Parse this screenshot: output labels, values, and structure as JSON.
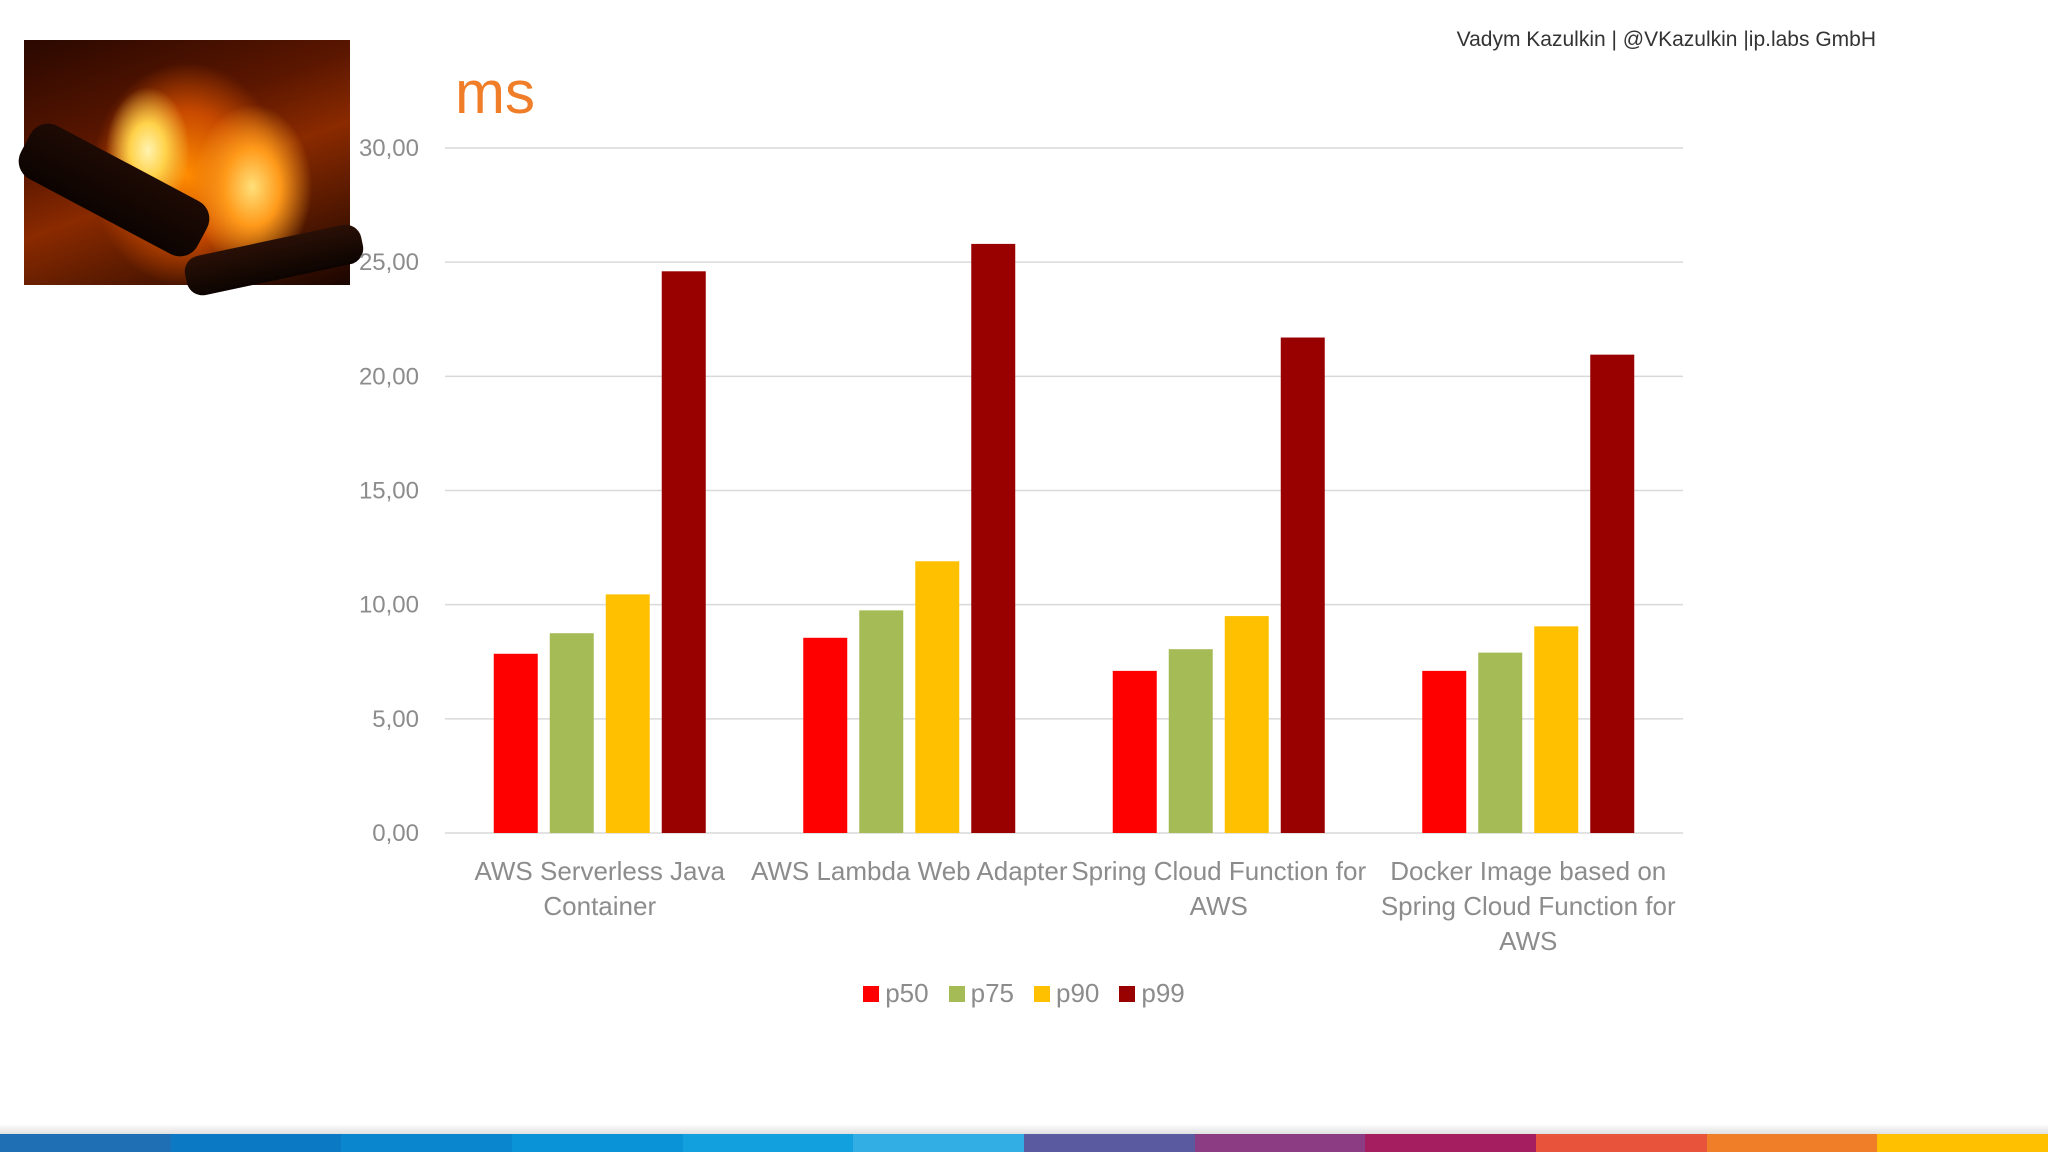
{
  "header": {
    "author": "Vadym Kazulkin | @VKazulkin |ip.labs GmbH"
  },
  "chart_data": {
    "type": "bar",
    "title": "",
    "xlabel": "",
    "ylabel": "ms",
    "ylim": [
      0,
      30
    ],
    "yticks": [
      "0,00",
      "5,00",
      "10,00",
      "15,00",
      "20,00",
      "25,00",
      "30,00"
    ],
    "grid": true,
    "legend_position": "bottom",
    "categories": [
      [
        "AWS Serverless Java",
        "Container"
      ],
      [
        "AWS Lambda Web Adapter"
      ],
      [
        "Spring Cloud Function for",
        "AWS"
      ],
      [
        "Docker Image based on",
        "Spring Cloud Function for",
        "AWS"
      ]
    ],
    "series": [
      {
        "name": "p50",
        "color": "#ff0000",
        "values": [
          7.85,
          8.55,
          7.1,
          7.1
        ]
      },
      {
        "name": "p75",
        "color": "#a5bb55",
        "values": [
          8.75,
          9.75,
          8.05,
          7.9
        ]
      },
      {
        "name": "p90",
        "color": "#ffc000",
        "values": [
          10.45,
          11.9,
          9.5,
          9.05
        ]
      },
      {
        "name": "p99",
        "color": "#990000",
        "values": [
          24.6,
          25.8,
          21.7,
          20.95
        ]
      }
    ]
  },
  "footer": {
    "stripe_colors": [
      "#1f6fb5",
      "#0b79c4",
      "#0a86cf",
      "#0b93d8",
      "#12a0de",
      "#32aee4",
      "#5a5aa0",
      "#8c3c82",
      "#a51e5f",
      "#e8533c",
      "#f07d28",
      "#ffc000"
    ]
  }
}
